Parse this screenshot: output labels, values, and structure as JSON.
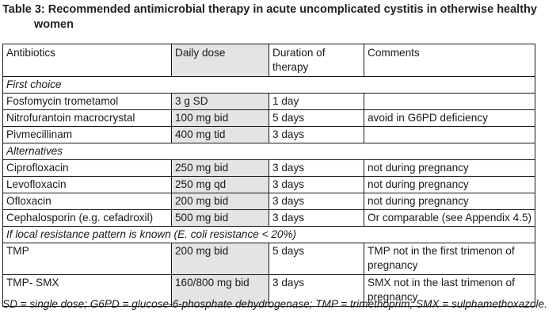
{
  "title_line1": "Table 3: Recommended antimicrobial therapy in acute uncomplicated cystitis in otherwise healthy",
  "title_line2": "women",
  "headers": {
    "antibiotics": "Antibiotics",
    "daily_dose": "Daily dose",
    "duration": "Duration of therapy",
    "comments": "Comments"
  },
  "sections": {
    "first_choice": "First choice",
    "alternatives": "Alternatives",
    "resistance": "If local resistance pattern is known (E. coli resistance < 20%)"
  },
  "rows": [
    {
      "antibiotic": "Fosfomycin trometamol",
      "dose": "3 g SD",
      "duration": "1 day",
      "comment": ""
    },
    {
      "antibiotic": "Nitrofurantoin macrocrystal",
      "dose": "100 mg bid",
      "duration": "5 days",
      "comment": "avoid in G6PD deficiency"
    },
    {
      "antibiotic": "Pivmecillinam",
      "dose": "400 mg tid",
      "duration": "3 days",
      "comment": ""
    },
    {
      "antibiotic": "Ciprofloxacin",
      "dose": "250 mg bid",
      "duration": "3 days",
      "comment": "not during pregnancy"
    },
    {
      "antibiotic": "Levofloxacin",
      "dose": "250 mg qd",
      "duration": "3 days",
      "comment": "not during pregnancy"
    },
    {
      "antibiotic": "Ofloxacin",
      "dose": "200 mg bid",
      "duration": "3 days",
      "comment": "not during pregnancy"
    },
    {
      "antibiotic": "Cephalosporin (e.g. cefadroxil)",
      "dose": "500 mg bid",
      "duration": "3 days",
      "comment": "Or comparable (see Appendix 4.5)"
    },
    {
      "antibiotic": "TMP",
      "dose": "200 mg bid",
      "duration": "5 days",
      "comment": "TMP not in the first trimenon of pregnancy"
    },
    {
      "antibiotic": "TMP- SMX",
      "dose": "160/800 mg bid",
      "duration": "3 days",
      "comment": "SMX not in the last trimenon of pregnancy"
    }
  ],
  "footnote": "SD = single dose; G6PD = glucose-6-phosphate dehydrogenase; TMP = trimethoprim; SMX = sulphamethoxazole."
}
